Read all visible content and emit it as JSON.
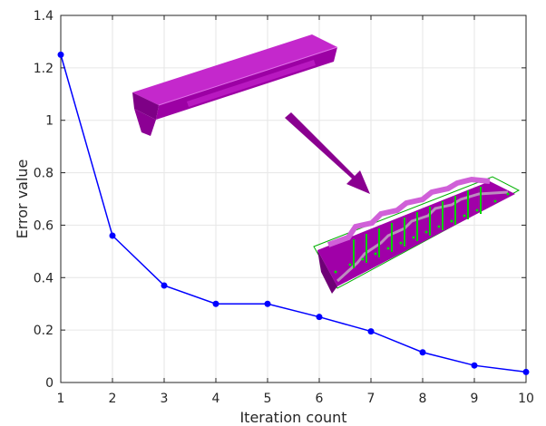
{
  "chart_data": {
    "type": "line",
    "xlabel": "Iteration count",
    "ylabel": "Error value",
    "xlim": [
      1,
      10
    ],
    "ylim": [
      0,
      1.4
    ],
    "xticks": [
      "1",
      "2",
      "3",
      "4",
      "5",
      "6",
      "7",
      "8",
      "9",
      "10"
    ],
    "yticks": [
      "0",
      "0.2",
      "0.4",
      "0.6",
      "0.8",
      "1",
      "1.2",
      "1.4"
    ],
    "grid": true,
    "series": [
      {
        "x": [
          1,
          2,
          3,
          4,
          5,
          6,
          7,
          8,
          9,
          10
        ],
        "y": [
          1.25,
          0.56,
          0.37,
          0.3,
          0.3,
          0.25,
          0.195,
          0.115,
          0.065,
          0.04
        ],
        "color": "#0000ff",
        "marker": "circle"
      }
    ],
    "insets": [
      {
        "icon": "magenta-beam-initial-shape",
        "color": "#a000a8"
      },
      {
        "icon": "arrow",
        "color": "#8a0090"
      },
      {
        "icon": "magenta-beam-optimized-with-green-force-arrows",
        "color": "#a000a8",
        "accent": "#00d000"
      }
    ]
  }
}
